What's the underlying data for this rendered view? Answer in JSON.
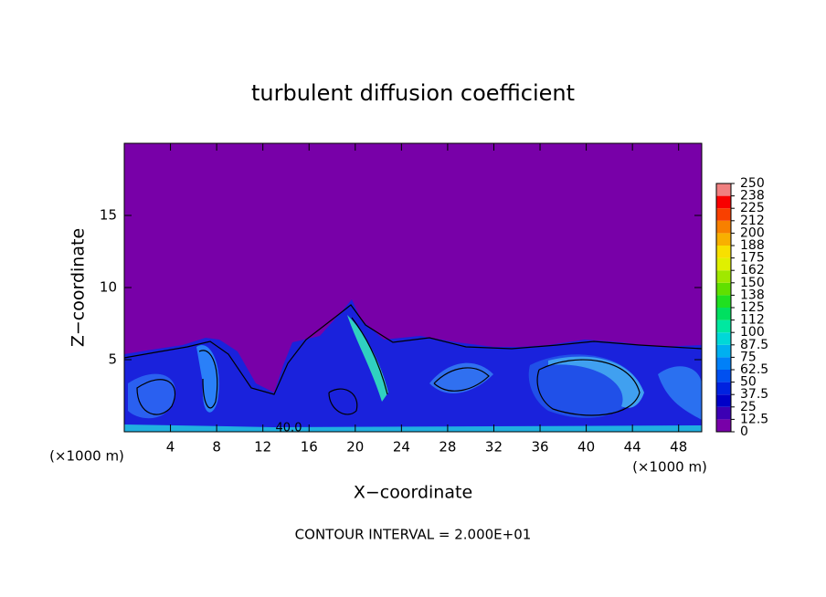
{
  "chart_data": {
    "type": "contour",
    "title": "turbulent diffusion coefficient",
    "xlabel": "X−coordinate",
    "ylabel": "Z−coordinate",
    "x_unit": "(×1000 m)",
    "y_unit": "(×1000 m)",
    "xlim": [
      0,
      50
    ],
    "xticks": [
      4,
      8,
      12,
      16,
      20,
      24,
      28,
      32,
      36,
      40,
      44,
      48
    ],
    "ylim": [
      0,
      20
    ],
    "yticks": [
      5,
      10,
      15
    ],
    "contour_label": "40.0",
    "note": "CONTOUR INTERVAL = 2.000E+01",
    "colorbar": {
      "levels": [
        0,
        12.5,
        25,
        37.5,
        50,
        62.5,
        75,
        87.5,
        100,
        {
          "value": 112.5,
          "label": "112"
        },
        125,
        {
          "value": 137.5,
          "label": "138"
        },
        150,
        {
          "value": 162.5,
          "label": "162"
        },
        175,
        {
          "value": 187.5,
          "label": "188"
        },
        200,
        {
          "value": 212.5,
          "label": "212"
        },
        225,
        {
          "value": 237.5,
          "label": "238"
        },
        250
      ],
      "colors": [
        "#7800a8",
        "#3c00b4",
        "#0000c8",
        "#0022e0",
        "#0050f0",
        "#0080f8",
        "#00b0f0",
        "#00d8d8",
        "#00e8a0",
        "#00e060",
        "#20e020",
        "#60e000",
        "#a0e800",
        "#e0f000",
        "#f8e000",
        "#f8b000",
        "#f88000",
        "#f84000",
        "#f80000",
        "#f08080"
      ]
    }
  }
}
